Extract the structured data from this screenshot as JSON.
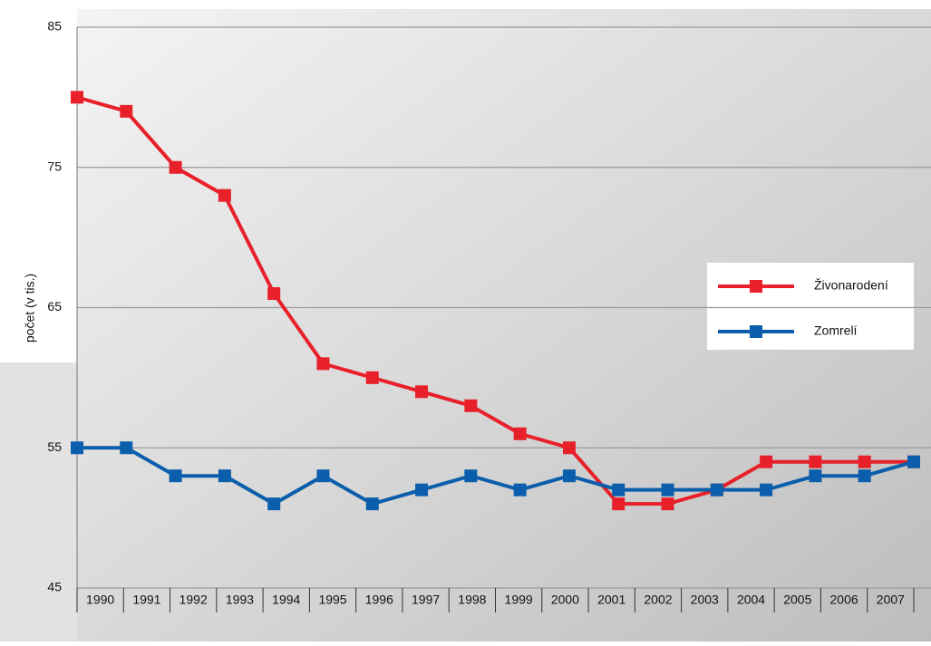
{
  "chart_data": {
    "type": "line",
    "y_label": "počet (v tis.)",
    "categories": [
      "1990",
      "1991",
      "1992",
      "1993",
      "1994",
      "1995",
      "1996",
      "1997",
      "1998",
      "1999",
      "2000",
      "2001",
      "2002",
      "2003",
      "2004",
      "2005",
      "2006",
      "2007"
    ],
    "series": [
      {
        "name": "Živonarodení",
        "color": "#e8202a",
        "values": [
          80,
          79,
          75,
          73,
          66,
          61,
          60,
          59,
          58,
          56,
          55,
          51,
          51,
          52,
          54,
          54,
          54,
          54
        ]
      },
      {
        "name": "Zomrelí",
        "color": "#0b5eab",
        "values": [
          55,
          55,
          53,
          53,
          51,
          53,
          51,
          52,
          53,
          52,
          53,
          52,
          52,
          52,
          52,
          53,
          53,
          54
        ]
      }
    ],
    "ylim": [
      45,
      85
    ],
    "yticks": [
      45,
      55,
      65,
      75,
      85
    ],
    "grid": true
  }
}
